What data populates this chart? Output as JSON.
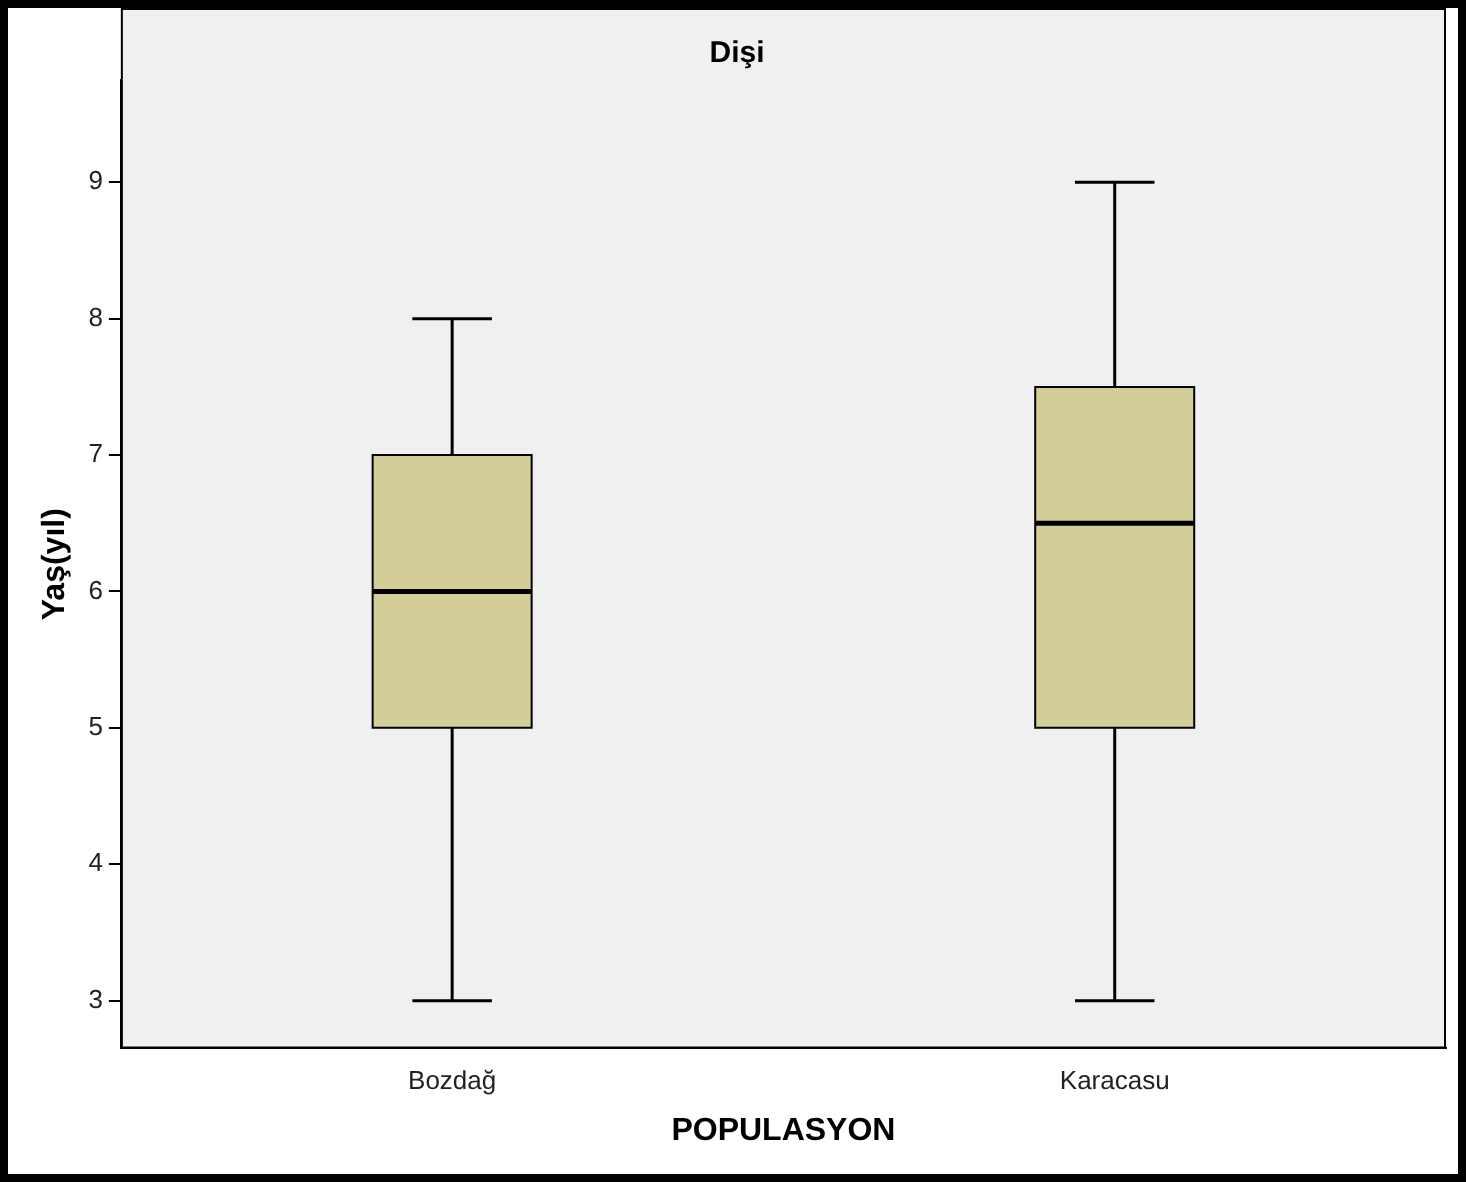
{
  "chart_data": {
    "type": "box",
    "title": "Dişi",
    "xlabel": "POPULASYON",
    "ylabel": "Yaş(yıl)",
    "categories": [
      "Bozdağ",
      "Karacasu"
    ],
    "boxes": [
      {
        "low": 3,
        "q1": 5,
        "median": 6,
        "q3": 7,
        "high": 8
      },
      {
        "low": 3,
        "q1": 5,
        "median": 6.5,
        "q3": 7.5,
        "high": 9
      }
    ],
    "color": "#d3cd98",
    "ylim": [
      2.65,
      9.75
    ],
    "yticks": [
      3,
      4,
      5,
      6,
      7,
      8,
      9
    ],
    "grid": false,
    "legend": false
  }
}
